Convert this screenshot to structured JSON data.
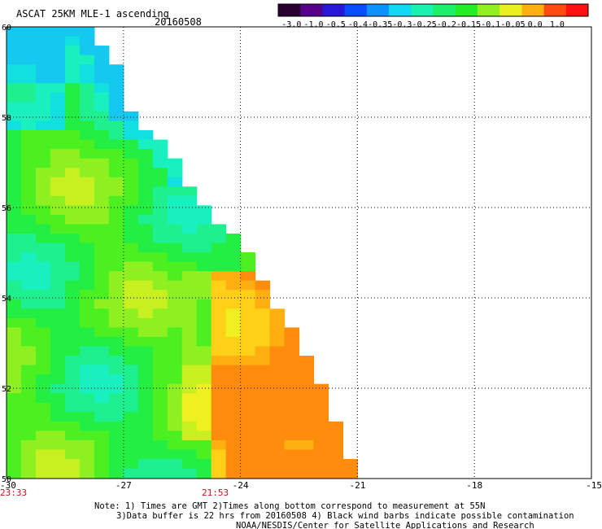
{
  "header": {
    "title": "ASCAT 25KM MLE-1 ascending",
    "date": "20160508"
  },
  "colorbar": {
    "labels": [
      "-3.0",
      "-1.0",
      "-0.5",
      "-0.4",
      "-0.35",
      "-0.3",
      "-0.25",
      "-0.2",
      "-0.15",
      "-0.1",
      "-0.05",
      "0.0",
      "1.0"
    ],
    "colors": [
      "#2a0030",
      "#55008a",
      "#2a18d8",
      "#0a4cff",
      "#0c92ff",
      "#10d8f2",
      "#18f2b0",
      "#1cf06a",
      "#22ee22",
      "#92f020",
      "#eaf020",
      "#ffb010",
      "#ff4a10",
      "#ff1010"
    ]
  },
  "axes": {
    "lon_ticks": [
      "-30",
      "-27",
      "-24",
      "-21",
      "-18",
      "-15"
    ],
    "lat_ticks": [
      "50",
      "52",
      "54",
      "56",
      "58",
      "60"
    ],
    "lon_range": [
      -30,
      -15
    ],
    "lat_range": [
      50,
      60
    ]
  },
  "times": [
    "23:33",
    "21:53"
  ],
  "notes": [
    "Note: 1) Times are GMT 2)Times along bottom correspond to measurement at 55N",
    "3)Data buffer is 22 hrs from 20160508 4) Black wind barbs indicate possible contamination",
    "NOAA/NESDIS/Center for Satellite Applications and Research"
  ],
  "swath": {
    "grid_cols": 40,
    "grid_rows": 48,
    "edge_lat_lon": [
      [
        60,
        -27.9
      ],
      [
        59.1,
        -27.2
      ],
      [
        58.0,
        -26.8
      ],
      [
        57.2,
        -25.7
      ],
      [
        56.0,
        -25.0
      ],
      [
        55.2,
        -24.0
      ],
      [
        54.3,
        -23.4
      ],
      [
        53.0,
        -22.5
      ],
      [
        52.0,
        -21.9
      ],
      [
        50.0,
        -21.0
      ]
    ]
  }
}
